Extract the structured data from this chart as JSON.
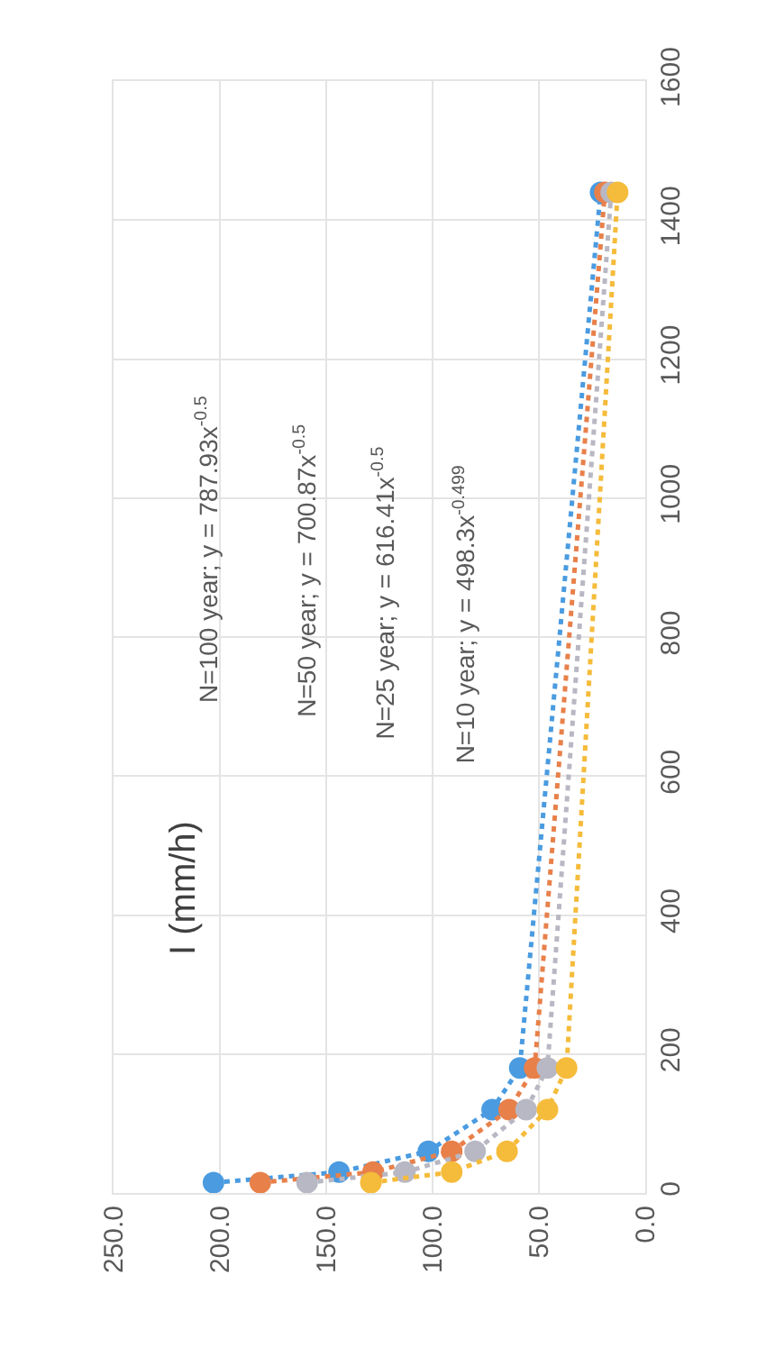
{
  "chart_data": {
    "type": "line",
    "series": [
      {
        "color": "#4a9be0",
        "x": [
          203,
          144,
          102,
          72,
          59,
          21
        ],
        "values": [
          15,
          30,
          60,
          120,
          180,
          1440
        ]
      },
      {
        "color": "#e8804a",
        "x": [
          181,
          128,
          91,
          64,
          52,
          19
        ],
        "values": [
          15,
          30,
          60,
          120,
          180,
          1440
        ]
      },
      {
        "color": "#b8b8c4",
        "x": [
          159,
          113,
          80,
          56,
          46,
          16
        ],
        "values": [
          15,
          30,
          60,
          120,
          180,
          1440
        ]
      },
      {
        "color": "#f5bb3a",
        "x": [
          129,
          91,
          65,
          46,
          37,
          13
        ],
        "values": [
          15,
          30,
          60,
          120,
          180,
          1440
        ]
      }
    ],
    "annotations": [
      "I (mm/h)",
      "N=100 year; y = 787.93x$^{-0.5}$",
      "N=50 year; y = 700.87x$^{-0.5}$",
      "N=25 year; y = 616.41x$^{-0.5}$",
      "N=10 year; y = 498.3x$^{-0.499}$"
    ],
    "xlim": [
      250,
      0
    ],
    "xticks": [
      {
        "value": 250,
        "label": "250.0"
      },
      {
        "value": 200,
        "label": "200.0"
      },
      {
        "value": 150,
        "label": "150.0"
      },
      {
        "value": 100,
        "label": "100.0"
      },
      {
        "value": 50,
        "label": "50.0"
      },
      {
        "value": 0,
        "label": "0.0"
      }
    ],
    "ylim": [
      0,
      1600
    ],
    "yticks": [
      0,
      200,
      400,
      600,
      800,
      1000,
      1200,
      1400,
      1600
    ],
    "grid": true,
    "marker": "circle",
    "line_style": "dotted"
  }
}
